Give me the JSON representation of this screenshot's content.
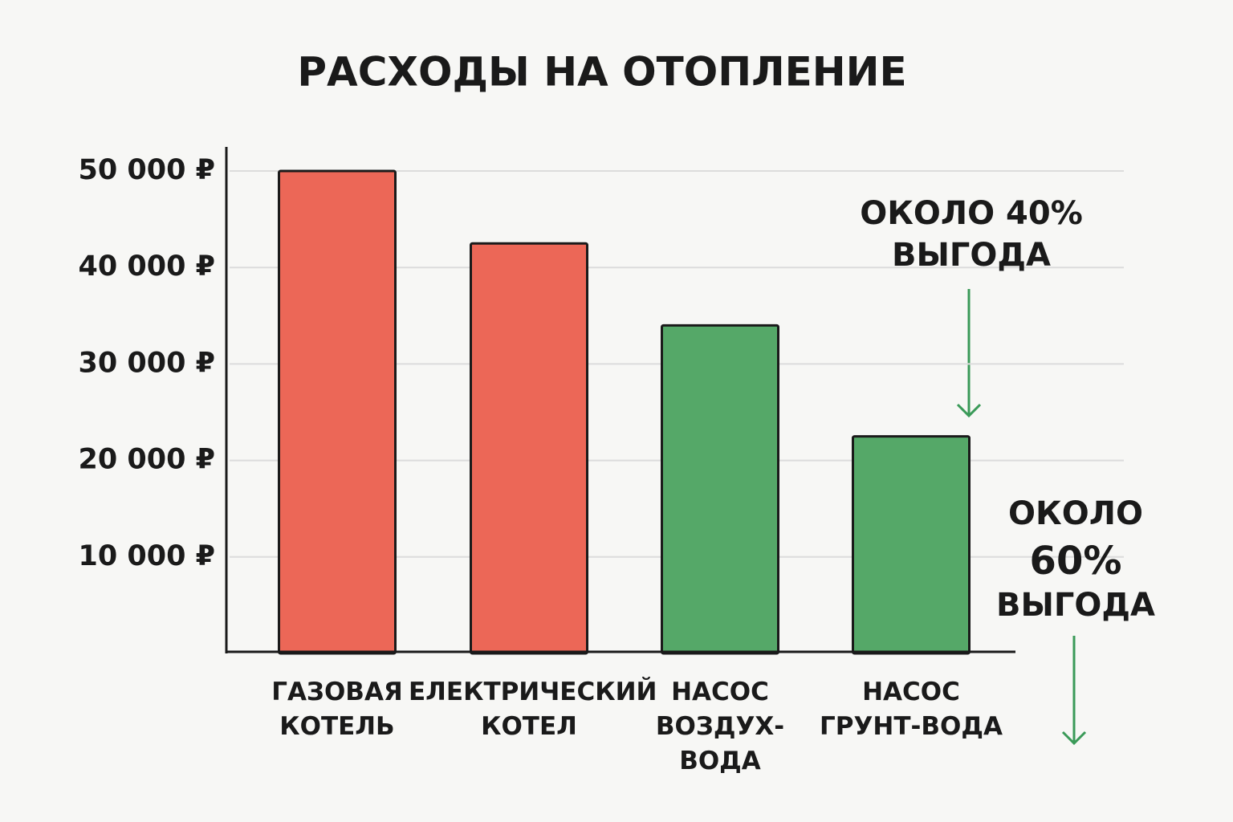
{
  "chart_data": {
    "type": "bar",
    "title": "РАСХОДЫ НА ОТОПЛЕНИЕ",
    "categories": [
      "ГАЗОВАЯ\nКОТЕЛЬ",
      "ЕЛЕКТРИЧЕСКИЙ\nКОТЕЛ",
      "НАСОС\nВОЗДУХ-\nВОДА",
      "НАСОС\nГРУНТ-ВОДА"
    ],
    "values": [
      50000,
      42500,
      34000,
      22500
    ],
    "colors": [
      "#ec6757",
      "#ec6757",
      "#55a868",
      "#55a868"
    ],
    "ylim": [
      0,
      52500
    ],
    "yticks": [
      {
        "value": 10000,
        "label": "10 000 ₽"
      },
      {
        "value": 20000,
        "label": "20 000 ₽"
      },
      {
        "value": 30000,
        "label": "30 000 ₽"
      },
      {
        "value": 40000,
        "label": "40 000 ₽"
      },
      {
        "value": 50000,
        "label": "50 000 ₽"
      }
    ],
    "grid": true,
    "annotations": [
      {
        "lines": [
          "ОКОЛО 40%",
          "ВЫГОДА"
        ]
      },
      {
        "lines": [
          "ОКОЛО",
          "60%",
          "ВЫГОДА"
        ]
      }
    ]
  }
}
